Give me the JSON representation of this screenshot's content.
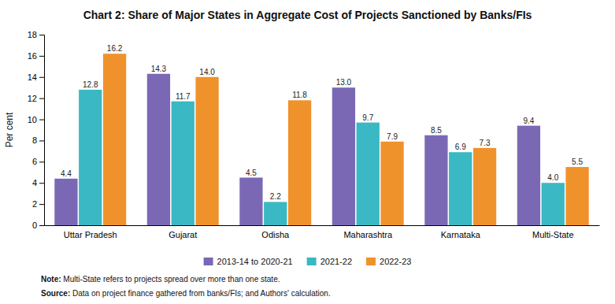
{
  "chart_data": {
    "type": "bar",
    "title": "Chart 2: Share of Major States in Aggregate Cost of Projects Sanctioned by Banks/FIs",
    "categories": [
      "Uttar Pradesh",
      "Gujarat",
      "Odisha",
      "Maharashtra",
      "Karnataka",
      "Multi-State"
    ],
    "series": [
      {
        "name": "2013-14 to 2020-21",
        "color": "#7b68b5",
        "values": [
          4.4,
          14.3,
          4.5,
          13.0,
          8.5,
          9.4
        ],
        "value_labels": [
          "4.4",
          "14.3",
          "4.5",
          "13.0",
          "8.5",
          "9.4"
        ]
      },
      {
        "name": "2021-22",
        "color": "#3ab8c3",
        "values": [
          12.8,
          11.7,
          2.2,
          9.7,
          6.9,
          4.0
        ],
        "value_labels": [
          "12.8",
          "11.7",
          "2.2",
          "9.7",
          "6.9",
          "4.0"
        ]
      },
      {
        "name": "2022-23",
        "color": "#f0922b",
        "values": [
          16.2,
          14.0,
          11.8,
          7.9,
          7.3,
          5.5
        ],
        "value_labels": [
          "16.2",
          "14.0",
          "11.8",
          "7.9",
          "7.3",
          "5.5"
        ]
      }
    ],
    "ylabel": "Per cent",
    "ylim": [
      0,
      18
    ],
    "yticks": [
      0,
      2,
      4,
      6,
      8,
      10,
      12,
      14,
      16,
      18
    ],
    "grid": false,
    "data_labels": true,
    "legend": "bottom",
    "annotations": [
      "Note: Multi-State refers to projects spread over more than one state.",
      "Source: Data on project finance gathered from banks/FIs; and Authors' calculation."
    ]
  }
}
